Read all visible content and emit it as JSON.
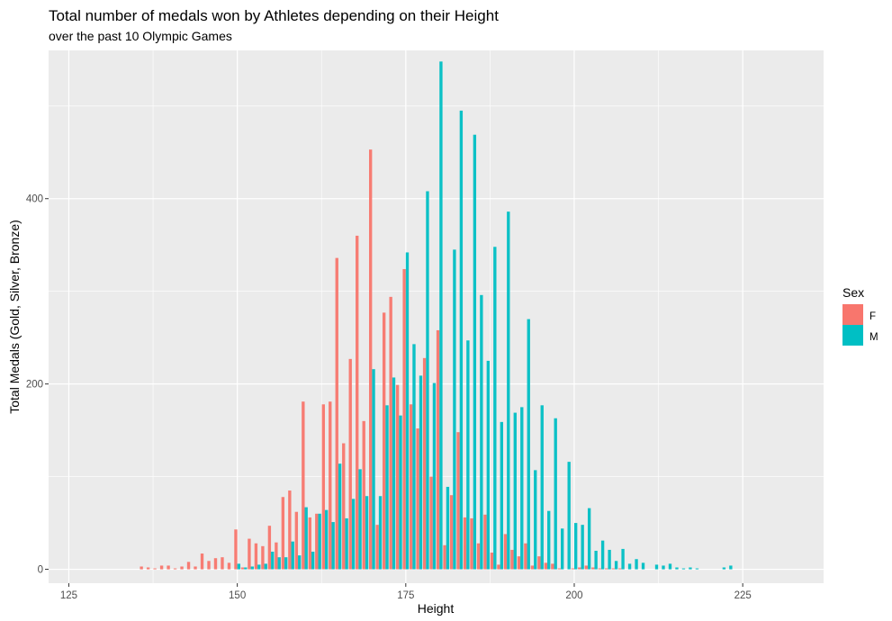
{
  "chart_data": {
    "type": "bar",
    "title": "Total number of medals won by Athletes depending on their Height",
    "subtitle": "over the past 10 Olympic Games",
    "xlabel": "Height",
    "ylabel": "Total Medals (Gold, Silver, Bronze)",
    "xlim": [
      122,
      237
    ],
    "ylim": [
      -15,
      560
    ],
    "xticks": [
      125,
      150,
      175,
      200,
      225
    ],
    "yticks": [
      0,
      200,
      400
    ],
    "grid": true,
    "legend": {
      "title": "Sex",
      "position": "right"
    },
    "series": [
      {
        "name": "F",
        "color": "#F8766D",
        "points": [
          [
            136,
            3
          ],
          [
            137,
            2
          ],
          [
            138,
            1
          ],
          [
            139,
            4
          ],
          [
            140,
            4
          ],
          [
            141,
            1
          ],
          [
            142,
            3
          ],
          [
            143,
            8
          ],
          [
            144,
            3
          ],
          [
            145,
            17
          ],
          [
            146,
            9
          ],
          [
            147,
            12
          ],
          [
            148,
            13
          ],
          [
            149,
            7
          ],
          [
            150,
            43
          ],
          [
            151,
            2
          ],
          [
            152,
            33
          ],
          [
            153,
            28
          ],
          [
            154,
            25
          ],
          [
            155,
            47
          ],
          [
            156,
            29
          ],
          [
            157,
            78
          ],
          [
            158,
            85
          ],
          [
            159,
            62
          ],
          [
            160,
            181
          ],
          [
            161,
            56
          ],
          [
            162,
            60
          ],
          [
            163,
            178
          ],
          [
            164,
            181
          ],
          [
            165,
            336
          ],
          [
            166,
            136
          ],
          [
            167,
            227
          ],
          [
            168,
            360
          ],
          [
            169,
            160
          ],
          [
            170,
            453
          ],
          [
            171,
            48
          ],
          [
            172,
            277
          ],
          [
            173,
            294
          ],
          [
            174,
            199
          ],
          [
            175,
            324
          ],
          [
            176,
            178
          ],
          [
            177,
            152
          ],
          [
            178,
            228
          ],
          [
            179,
            100
          ],
          [
            180,
            258
          ],
          [
            181,
            26
          ],
          [
            182,
            80
          ],
          [
            183,
            148
          ],
          [
            184,
            56
          ],
          [
            185,
            55
          ],
          [
            186,
            28
          ],
          [
            187,
            59
          ],
          [
            188,
            18
          ],
          [
            189,
            5
          ],
          [
            190,
            38
          ],
          [
            191,
            21
          ],
          [
            192,
            14
          ],
          [
            193,
            28
          ],
          [
            194,
            4
          ],
          [
            195,
            14
          ],
          [
            196,
            7
          ],
          [
            197,
            6
          ],
          [
            198,
            1
          ],
          [
            199,
            0
          ],
          [
            200,
            1
          ],
          [
            201,
            2
          ],
          [
            202,
            4
          ],
          [
            203,
            2
          ],
          [
            204,
            1
          ],
          [
            205,
            1
          ],
          [
            206,
            1
          ],
          [
            207,
            1
          ]
        ]
      },
      {
        "name": "M",
        "color": "#00BFC4",
        "points": [
          [
            150,
            6
          ],
          [
            151,
            2
          ],
          [
            152,
            3
          ],
          [
            153,
            5
          ],
          [
            154,
            6
          ],
          [
            155,
            19
          ],
          [
            156,
            13
          ],
          [
            157,
            13
          ],
          [
            158,
            30
          ],
          [
            159,
            15
          ],
          [
            160,
            67
          ],
          [
            161,
            19
          ],
          [
            162,
            60
          ],
          [
            163,
            64
          ],
          [
            164,
            51
          ],
          [
            165,
            114
          ],
          [
            166,
            55
          ],
          [
            167,
            76
          ],
          [
            168,
            108
          ],
          [
            169,
            79
          ],
          [
            170,
            216
          ],
          [
            171,
            79
          ],
          [
            172,
            177
          ],
          [
            173,
            207
          ],
          [
            174,
            166
          ],
          [
            175,
            342
          ],
          [
            176,
            243
          ],
          [
            177,
            209
          ],
          [
            178,
            408
          ],
          [
            179,
            201
          ],
          [
            180,
            548
          ],
          [
            181,
            89
          ],
          [
            182,
            345
          ],
          [
            183,
            495
          ],
          [
            184,
            247
          ],
          [
            185,
            469
          ],
          [
            186,
            296
          ],
          [
            187,
            225
          ],
          [
            188,
            348
          ],
          [
            189,
            159
          ],
          [
            190,
            386
          ],
          [
            191,
            169
          ],
          [
            192,
            175
          ],
          [
            193,
            270
          ],
          [
            194,
            107
          ],
          [
            195,
            177
          ],
          [
            196,
            63
          ],
          [
            197,
            163
          ],
          [
            198,
            44
          ],
          [
            199,
            116
          ],
          [
            200,
            50
          ],
          [
            201,
            48
          ],
          [
            202,
            66
          ],
          [
            203,
            20
          ],
          [
            204,
            31
          ],
          [
            205,
            21
          ],
          [
            206,
            9
          ],
          [
            207,
            22
          ],
          [
            208,
            6
          ],
          [
            209,
            11
          ],
          [
            210,
            7
          ],
          [
            211,
            0
          ],
          [
            212,
            5
          ],
          [
            213,
            4
          ],
          [
            214,
            6
          ],
          [
            215,
            2
          ],
          [
            216,
            1
          ],
          [
            217,
            2
          ],
          [
            218,
            1
          ],
          [
            219,
            0
          ],
          [
            220,
            0
          ],
          [
            221,
            0
          ],
          [
            222,
            2
          ],
          [
            223,
            4
          ],
          [
            224,
            0
          ]
        ]
      }
    ]
  }
}
